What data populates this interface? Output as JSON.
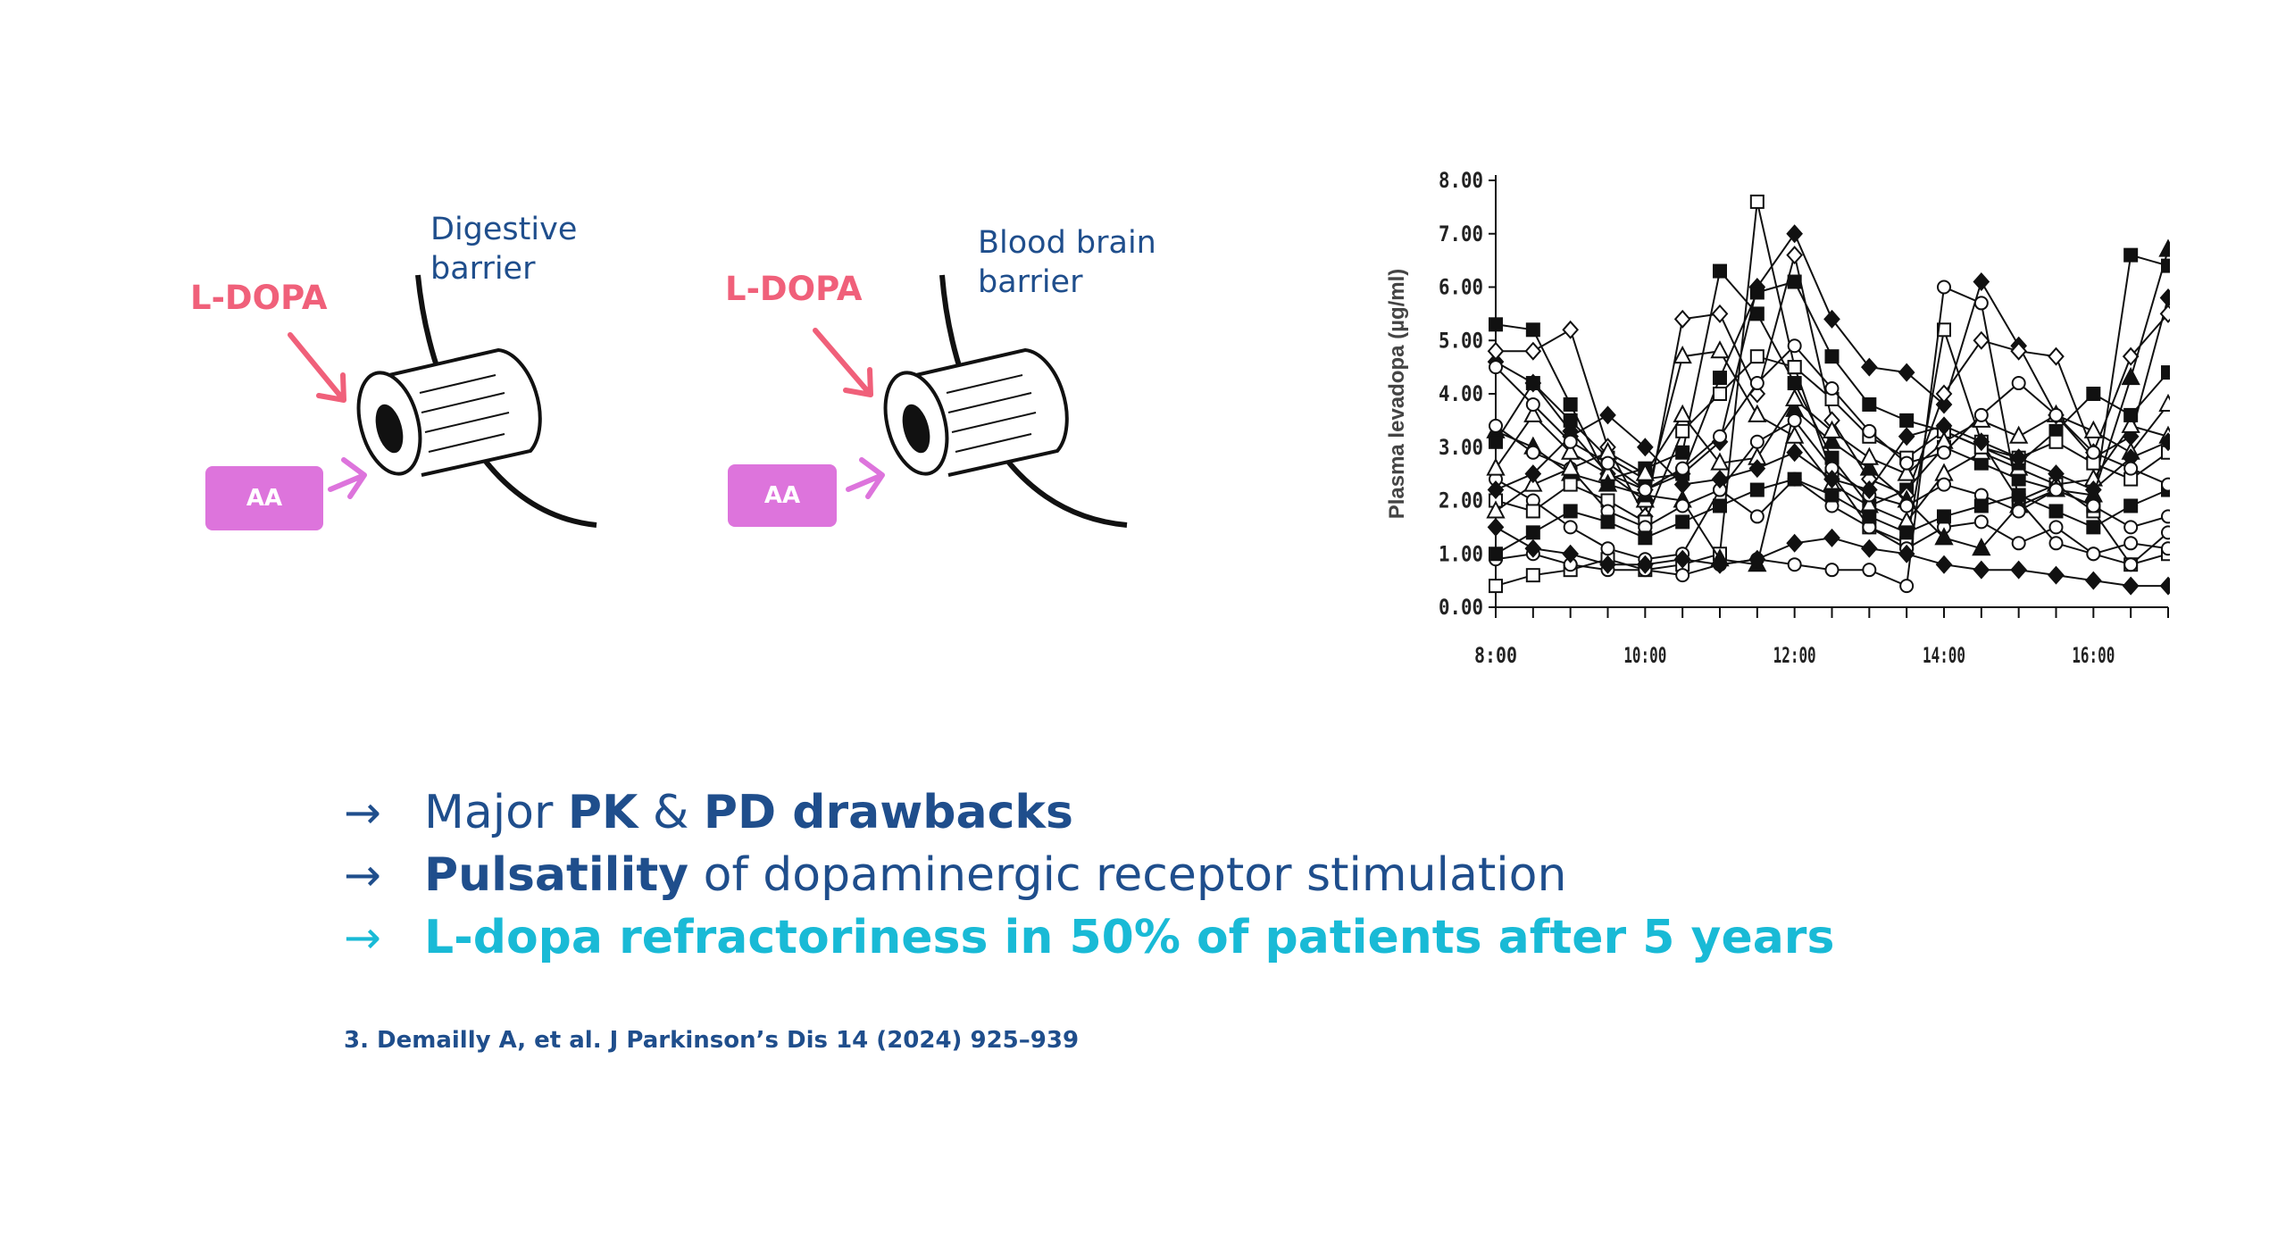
{
  "diagram_left": {
    "barrier_label": "Digestive\nbarrier",
    "drug_label": "L-DOPA",
    "aa_label": "AA"
  },
  "diagram_right": {
    "barrier_label": "Blood brain\nbarrier",
    "drug_label": "L-DOPA",
    "aa_label": "AA"
  },
  "colors": {
    "navy": "#1f4e8c",
    "cyan": "#19bad6",
    "pink": "#f0607a",
    "magenta": "#dd74dc"
  },
  "bullets": [
    {
      "arrow": "→",
      "parts": [
        {
          "t": "Major ",
          "b": false
        },
        {
          "t": "PK",
          "b": true
        },
        {
          "t": " & ",
          "b": false
        },
        {
          "t": "PD drawbacks",
          "b": true
        }
      ],
      "color": "navy"
    },
    {
      "arrow": "→",
      "parts": [
        {
          "t": "Pulsatility",
          "b": true
        },
        {
          "t": " of dopaminergic receptor stimulation",
          "b": false
        }
      ],
      "color": "navy"
    },
    {
      "arrow": "→",
      "parts": [
        {
          "t": "L-dopa refractoriness in 50% of patients after 5 years",
          "b": true
        }
      ],
      "color": "cyan"
    }
  ],
  "reference": "3. Demailly A, et al. J Parkinson’s Dis 14 (2024) 925–939",
  "chart_data": {
    "type": "line",
    "ylabel": "Plasma levadopa (µg/ml)",
    "xlabel": "",
    "ylim": [
      0,
      8
    ],
    "yticks": [
      "0.00",
      "1.00",
      "2.00",
      "3.00",
      "4.00",
      "5.00",
      "6.00",
      "7.00",
      "8.00"
    ],
    "xlim": [
      "8:00",
      "17:00"
    ],
    "xticks": [
      "8:00",
      "10:00",
      "12:00",
      "14:00",
      "16:00"
    ],
    "x": [
      "8:00",
      "8:30",
      "9:00",
      "9:30",
      "10:00",
      "10:30",
      "11:00",
      "11:30",
      "12:00",
      "12:30",
      "13:00",
      "13:30",
      "14:00",
      "14:30",
      "15:00",
      "15:30",
      "16:00",
      "16:30",
      "17:00"
    ],
    "series": [
      {
        "marker": "square-open",
        "values": [
          0.4,
          0.6,
          0.7,
          0.9,
          0.7,
          0.8,
          1.0,
          7.6,
          4.5,
          2.5,
          1.5,
          1.2,
          5.2,
          3.1,
          2.0,
          2.3,
          1.8,
          0.8,
          1.0
        ]
      },
      {
        "marker": "square-filled",
        "values": [
          5.3,
          5.2,
          3.8,
          2.4,
          2.6,
          2.9,
          6.3,
          5.5,
          4.2,
          2.8,
          1.9,
          2.2,
          3.0,
          2.7,
          2.4,
          2.2,
          1.9,
          6.6,
          6.4
        ]
      },
      {
        "marker": "diamond-filled",
        "values": [
          4.6,
          4.2,
          3.3,
          2.5,
          2.2,
          2.5,
          3.1,
          6.0,
          7.0,
          5.4,
          4.5,
          4.4,
          3.8,
          6.1,
          4.9,
          3.6,
          2.8,
          3.2,
          5.8
        ]
      },
      {
        "marker": "diamond-open",
        "values": [
          4.8,
          4.8,
          5.2,
          3.0,
          1.7,
          5.4,
          5.5,
          4.0,
          6.6,
          3.5,
          2.4,
          2.1,
          4.0,
          5.0,
          4.8,
          4.7,
          2.9,
          4.7,
          5.5
        ]
      },
      {
        "marker": "circle-open",
        "values": [
          0.9,
          1.0,
          0.8,
          0.7,
          0.7,
          0.6,
          0.8,
          0.9,
          0.8,
          0.7,
          0.7,
          0.4,
          6.0,
          5.7,
          2.0,
          1.2,
          1.0,
          0.8,
          1.4
        ]
      },
      {
        "marker": "circle-open",
        "values": [
          2.4,
          2.0,
          1.5,
          1.1,
          0.9,
          1.0,
          2.2,
          1.7,
          2.4,
          1.9,
          1.5,
          1.1,
          1.5,
          1.6,
          1.2,
          1.5,
          1.0,
          1.2,
          1.1
        ]
      },
      {
        "marker": "triangle-open",
        "values": [
          2.6,
          3.6,
          2.9,
          2.5,
          2.0,
          4.7,
          4.8,
          3.6,
          3.2,
          2.3,
          1.9,
          1.6,
          2.5,
          2.9,
          2.6,
          2.3,
          2.4,
          3.4,
          3.2
        ]
      },
      {
        "marker": "triangle-filled",
        "values": [
          3.3,
          3.0,
          2.5,
          2.3,
          2.1,
          2.0,
          0.9,
          0.8,
          3.7,
          3.1,
          2.6,
          2.0,
          1.3,
          1.1,
          1.9,
          2.2,
          2.1,
          4.3,
          6.7
        ]
      },
      {
        "marker": "diamond-filled",
        "values": [
          1.5,
          1.1,
          1.0,
          0.8,
          0.8,
          0.9,
          0.8,
          0.9,
          1.2,
          1.3,
          1.1,
          1.0,
          0.8,
          0.7,
          0.7,
          0.6,
          0.5,
          0.4,
          0.4
        ]
      },
      {
        "marker": "square-filled",
        "values": [
          3.1,
          4.2,
          3.5,
          2.8,
          2.4,
          2.5,
          4.3,
          5.9,
          6.1,
          4.7,
          3.8,
          3.5,
          3.3,
          3.0,
          2.7,
          3.3,
          4.0,
          3.6,
          4.4
        ]
      },
      {
        "marker": "square-open",
        "values": [
          2.0,
          1.8,
          2.3,
          2.0,
          1.6,
          3.3,
          4.0,
          4.7,
          4.5,
          3.9,
          3.2,
          2.8,
          3.3,
          3.0,
          2.8,
          3.1,
          2.7,
          2.4,
          2.9
        ]
      },
      {
        "marker": "circle-open",
        "values": [
          3.4,
          2.9,
          2.6,
          1.8,
          1.5,
          1.9,
          2.2,
          3.1,
          3.5,
          2.6,
          2.1,
          1.9,
          2.3,
          2.1,
          1.8,
          2.2,
          1.9,
          1.5,
          1.7
        ]
      },
      {
        "marker": "triangle-open",
        "values": [
          1.8,
          2.3,
          2.6,
          2.9,
          2.5,
          3.6,
          2.7,
          2.8,
          3.9,
          3.3,
          2.8,
          2.5,
          3.1,
          3.5,
          3.2,
          3.6,
          3.3,
          2.9,
          3.8
        ]
      },
      {
        "marker": "diamond-filled",
        "values": [
          2.2,
          2.5,
          3.2,
          3.6,
          3.0,
          2.3,
          2.4,
          2.6,
          2.9,
          2.4,
          2.2,
          3.2,
          3.4,
          3.1,
          2.8,
          2.5,
          2.2,
          2.8,
          3.1
        ]
      },
      {
        "marker": "square-filled",
        "values": [
          1.0,
          1.4,
          1.8,
          1.6,
          1.3,
          1.6,
          1.9,
          2.2,
          2.4,
          2.1,
          1.7,
          1.4,
          1.7,
          1.9,
          2.1,
          1.8,
          1.5,
          1.9,
          2.2
        ]
      },
      {
        "marker": "circle-open",
        "values": [
          4.5,
          3.8,
          3.1,
          2.7,
          2.2,
          2.6,
          3.2,
          4.2,
          4.9,
          4.1,
          3.3,
          2.7,
          2.9,
          3.6,
          4.2,
          3.6,
          2.9,
          2.6,
          2.3
        ]
      }
    ]
  }
}
